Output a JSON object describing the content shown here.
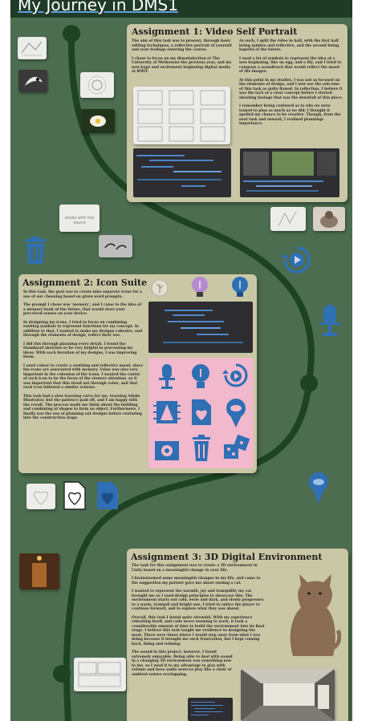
{
  "board": {
    "title": "My Journey in DMS1"
  },
  "assignment1": {
    "title": "Assignment 1: Video Self Portrait",
    "col1": [
      "The aim of this task was to present, through basic editing techniques, a reflective portrait of yourself and your feelings entering the course.",
      "I chose to focus on my dissatisfaction at The University of Melbourne the previous year, and my new hope and excitement beginning digital media at RMIT."
    ],
    "col2": [
      "As such, I split the video in half, with the first half being sombre and reflective, and the second being hopeful of the future.",
      "I used a lot of symbols to represent the idea of a new beginning, like an egg, and a lily, and I tried to compose a soundtrack that would reflect the mood of the images.",
      "At this point in my studies, I was not as focused on the elements of design, and I now see the outcome of this task as quite flawed. In reflection, I believe it was the lack of a clear concept before I started shooting footage that was the downfall of this piece.",
      "I remember being confused as to why we were tasked to plan as much as we did; I thought it spoiled my chance to be creative. Though, from the next task and onward, I realised plannings importance."
    ]
  },
  "assignment2": {
    "title": "Assignment 2: Icon Suite",
    "paragraphs": [
      "In this task, the goal was to create nine separate icons for a use of our choosing based on given word prompts.",
      "The prompt I chose was 'memory', and I came to the idea of a memory bank of the future, that would store your perceived senses on your device.",
      "In designing my icons, I tried to focus on combining existing symbols to represent functions for my concept. In addition to that, I wanted to make my designs cohesive, and through the elements of design, reflect their use.",
      "I did this through planning every detail. I found the thumbnail sketches to be very helpful to processing my ideas. With each iteration of my designs, I was improving them.",
      "I used colour to create a soothing and reflective mood, since the icons are associated with memory. Value was also very important in the cohesion of the icons. I wanted the centre of each icon to be the focus of the viewers attention, so it was important that this stood out through value, and that each icon followed a similar scheme.",
      "This task had a slow learning curve for me, learning Adobe Illustrator, but the patience paid off, and I am happy with the result. The process made me think about the building and combining of shapes to form an object. Furthermore, I finally saw the use of planning out designs before venturing into the construction stage."
    ]
  },
  "assignment3": {
    "title": "Assignment 3: 3D Digital Environment",
    "paragraphs": [
      "The task for this assignment was to create a 3D environment in Unity based on a meaningful change in your life.",
      "I brainstormed some meaningful changes in my life, and came to the suggestion my partner gave me about owning a cat.",
      "I wanted to represent the warmth, joy and tranquility my cat brought me so I used design principles to showcase this. The environment starts out cold, eerie and dark, and slowly progresses to a warm, tranquil and bright one. I tried to entice the player to continue forward, and to explore what they saw ahead.",
      "Overall, this task I found quite stressful. With my experience rebooting itself, and code never seeming to work, it took a considerable amount of time to build the environment into its final stage. I believe this task taught me resilience in designing the most. There were times where I would step away from what I was doing because it brought me such frustration, but I kept coming back, fixing and refining.",
      "The sound in this project, however, I found extremely enjoyable. Being able to deal with sound in a changing 3D environment was something new to me, so I used it to my advantage to play with volume and have audio sources play like a choir of ambient noises overlapping."
    ]
  },
  "notes": {
    "sketch_note": "shake with the sound"
  },
  "colors": {
    "board_green": "#4c6d50",
    "header_green": "#1f3b27",
    "road": "#1d4323",
    "card": "#c9c7a5",
    "icon_blue": "#2f6fb4",
    "icon_pink": "#f2b8cc",
    "icon_purple": "#b58ad3"
  },
  "icons": [
    "trash-icon",
    "microphone-icon",
    "lightbulb-icon",
    "replay-icon",
    "tree-chip-icon",
    "heart-file-icon",
    "cloud-pin-icon",
    "camera-icon",
    "dice-icon"
  ]
}
